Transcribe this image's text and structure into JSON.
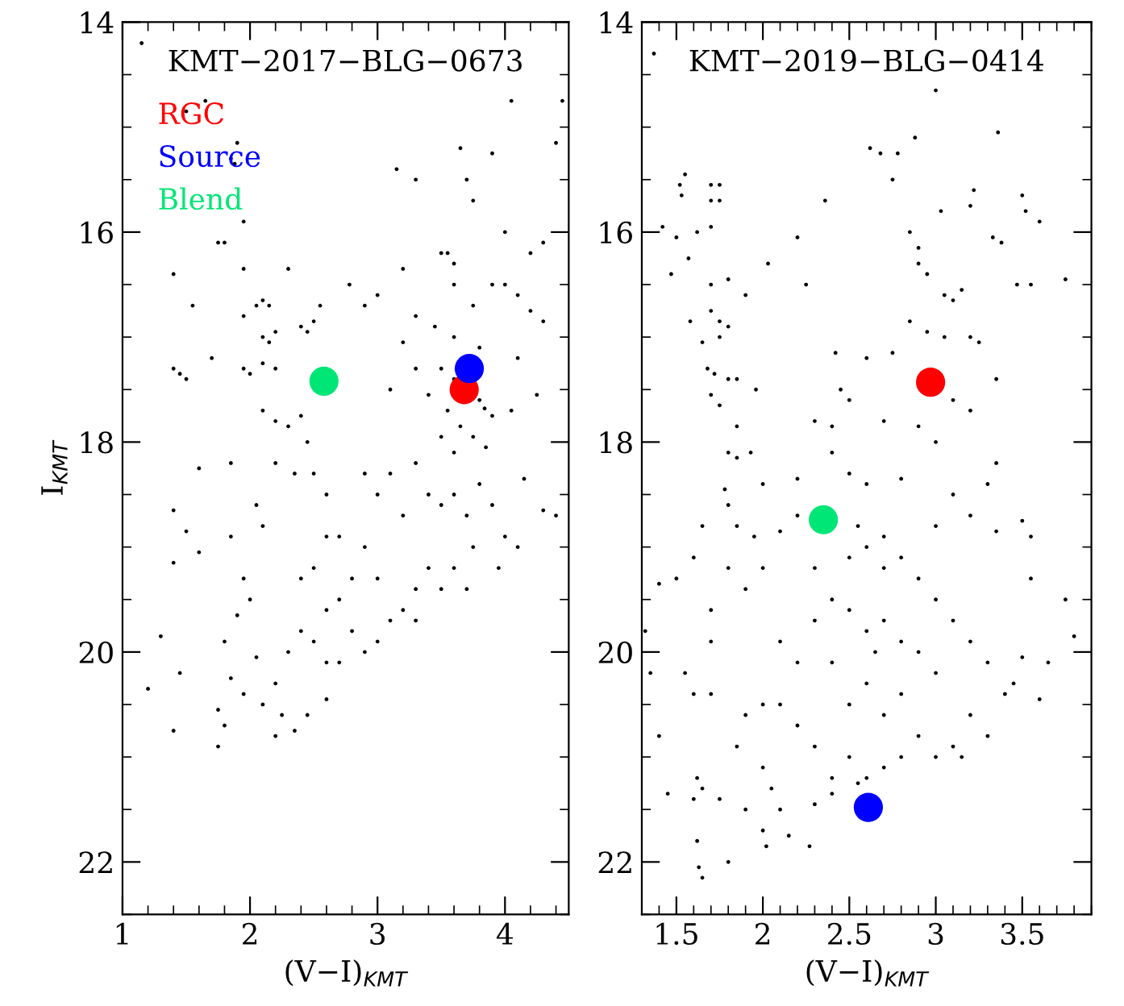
{
  "chart_data": [
    {
      "type": "scatter",
      "title": "KMT−2017−BLG−0673",
      "xlabel": "(V−I)$_{KMT}$",
      "ylabel": "I$_{KMT}$",
      "xlim": [
        1,
        4.5
      ],
      "xticks": [
        1,
        2,
        3,
        4
      ],
      "ylim": [
        22.5,
        14
      ],
      "yticks": [
        14,
        16,
        18,
        20,
        22
      ],
      "grid": false,
      "legend": "top left",
      "marker": "circle",
      "series": [
        {
          "color": "#000000",
          "x": [
            1.15,
            1.65,
            1.5,
            1.9,
            1.85,
            1.88,
            1.95,
            1.75,
            1.8,
            1.4,
            1.55,
            1.95,
            2.3,
            4.05,
            4.45,
            4.4,
            3.65,
            3.9,
            3.15,
            3.3,
            3.7,
            3.75,
            4.0,
            3.2,
            3.55,
            3.6,
            4.2,
            4.3,
            2.78,
            2.9,
            3.0,
            2.55,
            1.95,
            2.05,
            2.1,
            2.15,
            2.2,
            2.1,
            2.15,
            1.95,
            2.0,
            2.1,
            2.2,
            1.4,
            1.45,
            1.5,
            1.7,
            2.4,
            2.5,
            2.45,
            3.5,
            3.6,
            3.75,
            3.9,
            4.0,
            4.1,
            3.3,
            3.45,
            3.6,
            3.8,
            4.1,
            4.2,
            4.3,
            3.2,
            3.5,
            3.6,
            3.84,
            3.8,
            3.55,
            3.65,
            3.75,
            3.85,
            3.9,
            3.5,
            3.6,
            4.05,
            4.25,
            3.4,
            3.3,
            3.1,
            2.1,
            2.2,
            2.3,
            2.4,
            2.45,
            2.2,
            2.35,
            2.5,
            2.6,
            2.05,
            1.85,
            2.1,
            1.6,
            1.4,
            1.5,
            1.6,
            1.4,
            2.6,
            2.7,
            2.9,
            3.0,
            3.1,
            3.2,
            3.3,
            3.4,
            3.5,
            3.6,
            3.7,
            3.8,
            3.9,
            4.0,
            4.1,
            3.75,
            3.6,
            3.5,
            3.4,
            3.3,
            3.2,
            3.1,
            3.0,
            2.9,
            2.8,
            2.7,
            2.6,
            2.5,
            2.4,
            2.4,
            2.5,
            2.6,
            2.7,
            2.8,
            2.9,
            3.0,
            3.3,
            3.7,
            3.95,
            2.3,
            2.2,
            2.25,
            2.2,
            2.35,
            2.45,
            2.6,
            2.1,
            2.05,
            1.2,
            1.3,
            1.4,
            1.45,
            1.75,
            1.8,
            1.75,
            1.8,
            1.85,
            1.9,
            1.95,
            2.0,
            1.95,
            1.85,
            4.4,
            4.3,
            4.15
          ],
          "values": [
            14.2,
            14.75,
            14.85,
            15.15,
            15.3,
            15.35,
            15.9,
            16.1,
            16.1,
            16.4,
            16.7,
            16.35,
            16.35,
            14.75,
            14.75,
            15.15,
            15.2,
            15.25,
            15.4,
            15.5,
            15.5,
            15.7,
            16.0,
            16.35,
            16.2,
            16.3,
            16.2,
            16.1,
            16.5,
            16.7,
            16.6,
            16.7,
            16.8,
            16.7,
            16.65,
            16.7,
            16.95,
            17.0,
            17.05,
            17.3,
            17.35,
            17.25,
            17.3,
            17.3,
            17.35,
            17.4,
            17.2,
            16.9,
            16.85,
            16.95,
            16.2,
            16.5,
            16.7,
            16.5,
            16.5,
            16.6,
            16.8,
            16.9,
            17.0,
            17.1,
            17.2,
            16.75,
            16.85,
            17.05,
            17.3,
            17.4,
            17.68,
            17.6,
            17.7,
            17.85,
            17.95,
            18.05,
            17.75,
            17.95,
            18.1,
            17.7,
            17.55,
            17.55,
            17.3,
            17.5,
            17.7,
            17.8,
            17.85,
            17.75,
            18.0,
            18.2,
            18.3,
            18.3,
            18.5,
            18.6,
            18.2,
            18.8,
            18.25,
            18.65,
            18.85,
            19.05,
            19.15,
            18.9,
            18.9,
            18.3,
            18.5,
            18.3,
            18.7,
            18.2,
            18.5,
            18.6,
            18.5,
            18.7,
            18.4,
            18.6,
            18.9,
            19.0,
            19.0,
            19.2,
            19.4,
            19.2,
            19.4,
            19.6,
            19.7,
            19.9,
            20.0,
            19.8,
            20.1,
            20.1,
            19.9,
            19.8,
            19.3,
            19.2,
            19.6,
            19.5,
            19.3,
            19.0,
            19.3,
            19.7,
            19.4,
            19.2,
            20.0,
            20.3,
            20.6,
            20.8,
            20.75,
            20.6,
            20.45,
            20.5,
            20.05,
            20.35,
            19.85,
            20.75,
            20.2,
            20.9,
            20.7,
            20.55,
            19.9,
            20.25,
            19.65,
            20.4,
            19.5,
            19.3,
            18.9,
            18.7,
            18.65,
            18.35
          ]
        },
        {
          "name": "RGC",
          "color": "#ff0000",
          "x": [
            3.68
          ],
          "values": [
            17.5
          ]
        },
        {
          "name": "Source",
          "color": "#0000ff",
          "x": [
            3.72
          ],
          "values": [
            17.3
          ]
        },
        {
          "name": "Blend",
          "color": "#00e676",
          "x": [
            2.58
          ],
          "values": [
            17.42
          ]
        }
      ]
    },
    {
      "type": "scatter",
      "title": "KMT−2019−BLG−0414",
      "xlabel": "(V−I)$_{KMT}$",
      "xlim": [
        1.3,
        3.9
      ],
      "xticks": [
        1.5,
        2,
        2.5,
        3,
        3.5
      ],
      "ylim": [
        22.5,
        14
      ],
      "yticks": [
        14,
        16,
        18,
        20,
        22
      ],
      "grid": false,
      "marker": "circle",
      "series": [
        {
          "color": "#000000",
          "x": [
            1.37,
            3.0,
            2.62,
            2.68,
            2.78,
            2.88,
            3.36,
            2.75,
            1.52,
            1.55,
            1.53,
            1.7,
            1.75,
            1.7,
            1.75,
            2.36,
            3.22,
            3.2,
            3.5,
            3.52,
            3.6,
            3.03,
            1.42,
            1.5,
            1.62,
            1.7,
            2.2,
            2.85,
            2.9,
            3.33,
            3.38,
            1.57,
            1.47,
            2.03,
            2.9,
            2.95,
            3.05,
            3.1,
            3.15,
            3.47,
            3.55,
            3.75,
            1.7,
            1.8,
            1.9,
            2.25,
            1.58,
            1.7,
            1.75,
            1.8,
            1.65,
            1.75,
            2.85,
            2.95,
            3.05,
            3.2,
            3.25,
            2.75,
            2.6,
            2.42,
            1.68,
            1.72,
            1.8,
            1.85,
            1.7,
            1.75,
            1.96,
            2.45,
            2.5,
            3.1,
            3.2,
            3.35,
            2.3,
            2.4,
            2.7,
            2.9,
            3.0,
            1.85,
            1.8,
            1.85,
            1.93,
            2.4,
            2.0,
            1.78,
            1.8,
            2.2,
            2.5,
            2.6,
            2.8,
            3.1,
            3.3,
            3.2,
            3.35,
            1.65,
            1.85,
            1.95,
            2.1,
            2.2,
            2.55,
            2.7,
            3.0,
            3.35,
            3.5,
            3.55,
            1.6,
            1.5,
            1.4,
            1.8,
            1.9,
            1.7,
            2.0,
            2.3,
            3.55,
            3.75,
            3.8,
            3.65,
            3.5,
            3.45,
            3.6,
            1.32,
            1.35,
            1.55,
            1.7,
            1.6,
            1.7,
            1.4,
            1.9,
            2.0,
            1.85,
            2.5,
            2.6,
            2.7,
            2.8,
            2.9,
            3.0,
            3.1,
            3.2,
            3.3,
            3.4,
            3.2,
            3.1,
            3.0,
            2.9,
            2.8,
            2.7,
            2.6,
            2.5,
            2.4,
            2.3,
            2.2,
            2.1,
            2.2,
            2.3,
            2.4,
            2.5,
            2.6,
            2.7,
            2.8,
            2.9,
            3.0,
            2.6,
            2.5,
            2.7,
            2.8,
            2.4,
            2.65,
            3.3,
            2.1,
            3.15,
            2.0,
            2.05,
            2.1,
            2.0,
            2.15,
            1.9,
            1.62,
            1.65,
            1.6,
            1.45,
            1.75,
            1.62,
            1.63,
            1.65,
            1.8,
            2.02,
            2.27,
            2.3,
            2.4,
            2.55
          ],
          "values": [
            14.3,
            14.65,
            15.2,
            15.25,
            15.25,
            15.1,
            15.05,
            15.5,
            15.55,
            15.45,
            15.65,
            15.55,
            15.55,
            15.7,
            15.7,
            15.7,
            15.6,
            15.75,
            15.65,
            15.8,
            15.9,
            15.8,
            15.95,
            16.05,
            16.0,
            15.95,
            16.05,
            16.0,
            16.15,
            16.05,
            16.1,
            16.25,
            16.4,
            16.3,
            16.3,
            16.4,
            16.6,
            16.65,
            16.55,
            16.5,
            16.5,
            16.45,
            16.5,
            16.45,
            16.6,
            16.5,
            16.85,
            16.75,
            16.85,
            16.9,
            17.05,
            17.0,
            16.85,
            16.95,
            17.0,
            17.0,
            17.05,
            17.15,
            17.2,
            17.15,
            17.3,
            17.35,
            17.4,
            17.4,
            17.55,
            17.65,
            17.5,
            17.5,
            17.6,
            17.6,
            17.7,
            17.4,
            17.8,
            17.85,
            17.8,
            17.85,
            18.0,
            17.85,
            18.1,
            18.15,
            18.1,
            18.1,
            18.4,
            18.45,
            18.6,
            18.35,
            18.3,
            18.4,
            18.35,
            18.5,
            18.4,
            18.7,
            18.2,
            18.8,
            18.8,
            18.9,
            18.85,
            18.7,
            18.8,
            18.9,
            18.8,
            18.85,
            18.75,
            18.9,
            19.1,
            19.3,
            19.35,
            19.2,
            19.4,
            19.6,
            19.2,
            19.2,
            19.3,
            19.5,
            19.85,
            20.1,
            20.05,
            20.3,
            20.45,
            19.8,
            20.2,
            20.2,
            19.9,
            20.4,
            20.4,
            20.8,
            20.6,
            20.5,
            20.9,
            19.1,
            19.0,
            19.2,
            19.1,
            19.3,
            19.5,
            19.7,
            19.9,
            20.1,
            20.4,
            20.6,
            20.9,
            21.0,
            20.8,
            21.0,
            21.1,
            21.2,
            21.0,
            21.2,
            20.9,
            20.7,
            20.5,
            20.1,
            19.7,
            19.5,
            19.6,
            19.8,
            19.7,
            19.9,
            20.0,
            20.2,
            20.3,
            20.5,
            20.6,
            20.4,
            20.1,
            20.0,
            20.8,
            19.9,
            21.0,
            21.1,
            21.3,
            21.5,
            21.7,
            21.75,
            21.5,
            21.2,
            21.3,
            21.4,
            21.35,
            21.4,
            21.8,
            22.05,
            22.15,
            22.0,
            21.85,
            21.85,
            21.45,
            21.35,
            21.25
          ]
        },
        {
          "color": "#ff0000",
          "x": [
            2.97
          ],
          "values": [
            17.43
          ]
        },
        {
          "color": "#0000ff",
          "x": [
            2.61
          ],
          "values": [
            21.48
          ]
        },
        {
          "color": "#00e676",
          "x": [
            2.35
          ],
          "values": [
            18.74
          ]
        }
      ]
    }
  ]
}
